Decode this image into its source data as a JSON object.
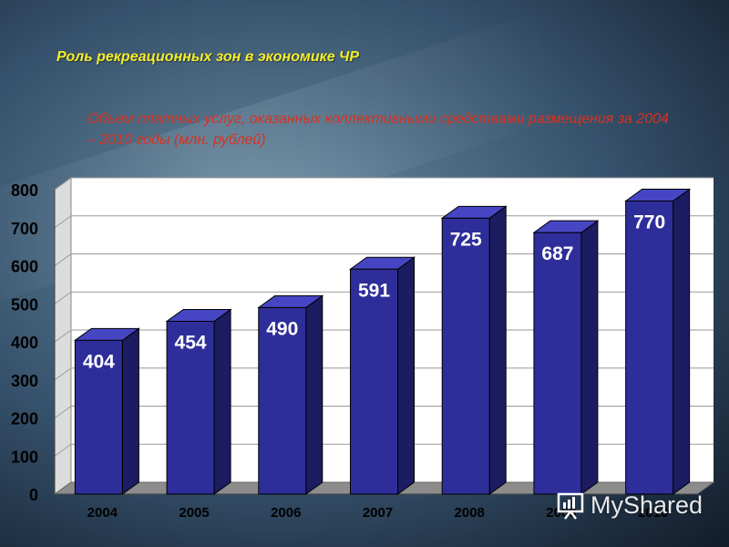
{
  "slide": {
    "title": "Роль рекреационных зон в экономике ЧР",
    "subtitle": "Объем платных услуг, оказанных коллективными средствами размещения за 2004 – 2010 годы (млн. рублей)"
  },
  "watermark": {
    "text": "MyShared"
  },
  "chart_data": {
    "type": "bar",
    "categories": [
      "2004",
      "2005",
      "2006",
      "2007",
      "2008",
      "2009",
      "2010"
    ],
    "series": [
      {
        "values": [
          404,
          454,
          490,
          591,
          725,
          687,
          770
        ]
      }
    ],
    "data_labels": [
      "404",
      "454",
      "490",
      "591",
      "725",
      "687",
      "770"
    ],
    "ylim": [
      0,
      800
    ],
    "yticks": [
      "0",
      "100",
      "200",
      "300",
      "400",
      "500",
      "600",
      "700",
      "800"
    ],
    "grid": true,
    "style": "3d-column",
    "colors": {
      "bar_front": "#2e2e9a",
      "bar_side": "#1c1c62",
      "bar_top": "#4646c4",
      "wall": "#ffffff",
      "grid": "#9a9a9a",
      "floor": "#8c8c8c"
    }
  }
}
